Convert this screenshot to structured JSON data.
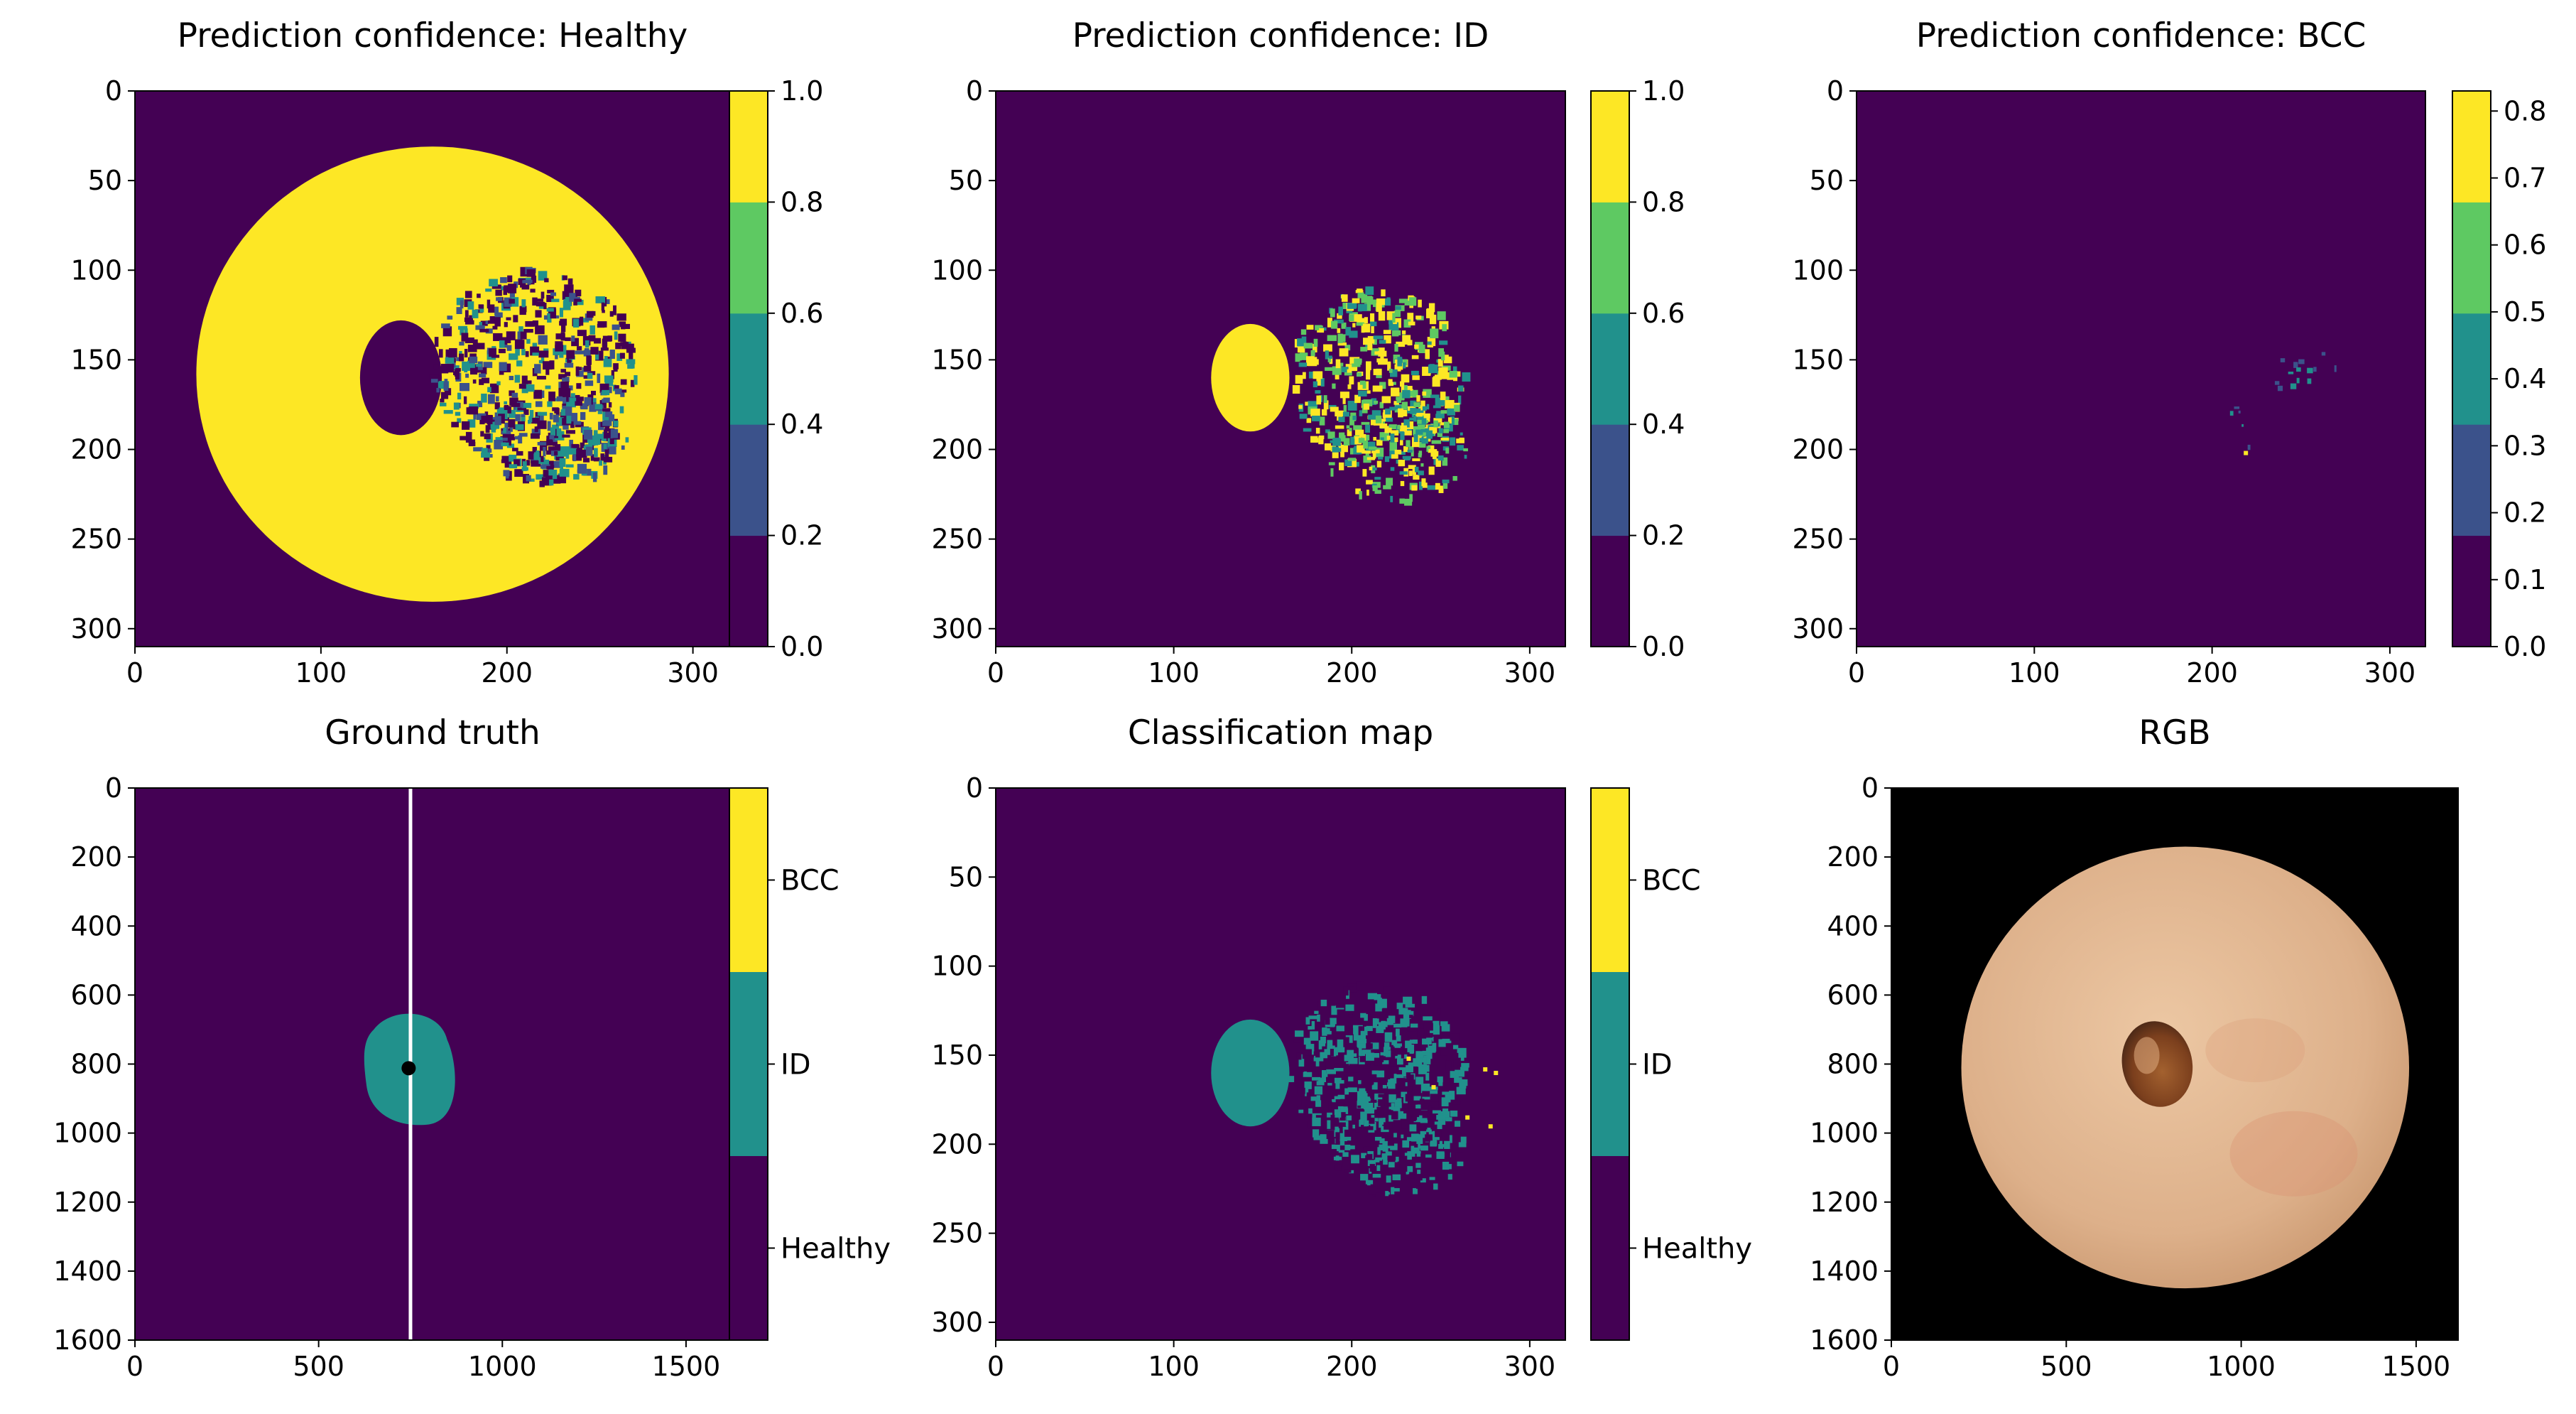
{
  "figure": {
    "layout": "2 rows x 3 columns of image panels with colorbars"
  },
  "chart_data": [
    {
      "id": "p1",
      "type": "heatmap",
      "title": "Prediction confidence: Healthy",
      "xlim": [
        0,
        320
      ],
      "ylim": [
        310,
        0
      ],
      "xticks": [
        "0",
        "100",
        "200",
        "300"
      ],
      "xtick_values": [
        0,
        100,
        200,
        300
      ],
      "yticks": [
        "0",
        "50",
        "100",
        "150",
        "200",
        "250",
        "300"
      ],
      "ytick_values": [
        0,
        50,
        100,
        150,
        200,
        250,
        300
      ],
      "content": "disc",
      "disc": {
        "cx": 160,
        "cy": 158,
        "r": 127,
        "hole": {
          "cx": 143,
          "cy": 160,
          "rx": 22,
          "ry": 32
        }
      },
      "colorbar": {
        "min": 0.0,
        "max": 1.0,
        "ticks": [
          "0.0",
          "0.2",
          "0.4",
          "0.6",
          "0.8",
          "1.0"
        ],
        "tick_values": [
          0.0,
          0.2,
          0.4,
          0.6,
          0.8,
          1.0
        ]
      }
    },
    {
      "id": "p2",
      "type": "heatmap",
      "title": "Prediction confidence: ID",
      "xlim": [
        0,
        320
      ],
      "ylim": [
        310,
        0
      ],
      "xticks": [
        "0",
        "100",
        "200",
        "300"
      ],
      "xtick_values": [
        0,
        100,
        200,
        300
      ],
      "yticks": [
        "0",
        "50",
        "100",
        "150",
        "200",
        "250",
        "300"
      ],
      "ytick_values": [
        0,
        50,
        100,
        150,
        200,
        250,
        300
      ],
      "content": "lesion",
      "lesion": {
        "cx": 143,
        "cy": 160,
        "rx": 22,
        "ry": 30
      },
      "colorbar": {
        "min": 0.0,
        "max": 1.0,
        "ticks": [
          "0.0",
          "0.2",
          "0.4",
          "0.6",
          "0.8",
          "1.0"
        ],
        "tick_values": [
          0.0,
          0.2,
          0.4,
          0.6,
          0.8,
          1.0
        ]
      }
    },
    {
      "id": "p3",
      "type": "heatmap",
      "title": "Prediction confidence: BCC",
      "xlim": [
        0,
        320
      ],
      "ylim": [
        310,
        0
      ],
      "xticks": [
        "0",
        "100",
        "200",
        "300"
      ],
      "xtick_values": [
        0,
        100,
        200,
        300
      ],
      "yticks": [
        "0",
        "50",
        "100",
        "150",
        "200",
        "250",
        "300"
      ],
      "ytick_values": [
        0,
        50,
        100,
        150,
        200,
        250,
        300
      ],
      "content": "sparse",
      "colorbar": {
        "min": 0.0,
        "max": 0.83,
        "ticks": [
          "0.0",
          "0.1",
          "0.2",
          "0.3",
          "0.4",
          "0.5",
          "0.6",
          "0.7",
          "0.8"
        ],
        "tick_values": [
          0.0,
          0.1,
          0.2,
          0.3,
          0.4,
          0.5,
          0.6,
          0.7,
          0.8
        ]
      }
    },
    {
      "id": "p4",
      "type": "heatmap",
      "title": "Ground truth",
      "xlim": [
        0,
        1620
      ],
      "ylim": [
        1600,
        0
      ],
      "xticks": [
        "0",
        "500",
        "1000",
        "1500"
      ],
      "xtick_values": [
        0,
        500,
        1000,
        1500
      ],
      "yticks": [
        "0",
        "200",
        "400",
        "600",
        "800",
        "1000",
        "1200",
        "1400",
        "1600"
      ],
      "ytick_values": [
        0,
        200,
        400,
        600,
        800,
        1000,
        1200,
        1400,
        1600
      ],
      "content": "groundtruth",
      "vertical_line_x": 750,
      "marker": {
        "x": 745,
        "y": 812
      },
      "colorbar": {
        "categorical": true,
        "ticks": [
          "Healthy",
          "ID",
          "BCC"
        ]
      }
    },
    {
      "id": "p5",
      "type": "heatmap",
      "title": "Classification map",
      "xlim": [
        0,
        320
      ],
      "ylim": [
        310,
        0
      ],
      "xticks": [
        "0",
        "100",
        "200",
        "300"
      ],
      "xtick_values": [
        0,
        100,
        200,
        300
      ],
      "yticks": [
        "0",
        "50",
        "100",
        "150",
        "200",
        "250",
        "300"
      ],
      "ytick_values": [
        0,
        50,
        100,
        150,
        200,
        250,
        300
      ],
      "content": "classmap",
      "lesion": {
        "cx": 143,
        "cy": 160,
        "rx": 22,
        "ry": 30
      },
      "colorbar": {
        "categorical": true,
        "ticks": [
          "Healthy",
          "ID",
          "BCC"
        ]
      }
    },
    {
      "id": "p6",
      "type": "image",
      "title": "RGB",
      "xlim": [
        0,
        1620
      ],
      "ylim": [
        1600,
        0
      ],
      "xticks": [
        "0",
        "500",
        "1000",
        "1500"
      ],
      "xtick_values": [
        0,
        500,
        1000,
        1500
      ],
      "yticks": [
        "0",
        "200",
        "400",
        "600",
        "800",
        "1000",
        "1200",
        "1400",
        "1600"
      ],
      "ytick_values": [
        0,
        200,
        400,
        600,
        800,
        1000,
        1200,
        1400,
        1600
      ],
      "content": "rgb",
      "skin_disc": {
        "cx": 840,
        "cy": 810,
        "r": 640
      },
      "lesion": {
        "cx": 760,
        "cy": 800,
        "rx": 100,
        "ry": 125
      }
    }
  ],
  "colors": {
    "viridis5": [
      "#440154",
      "#3b528b",
      "#21918c",
      "#5ec962",
      "#fde725"
    ],
    "background": "#440154",
    "skin": "#e2b68f",
    "lesion_brown": "#8a4a22"
  }
}
